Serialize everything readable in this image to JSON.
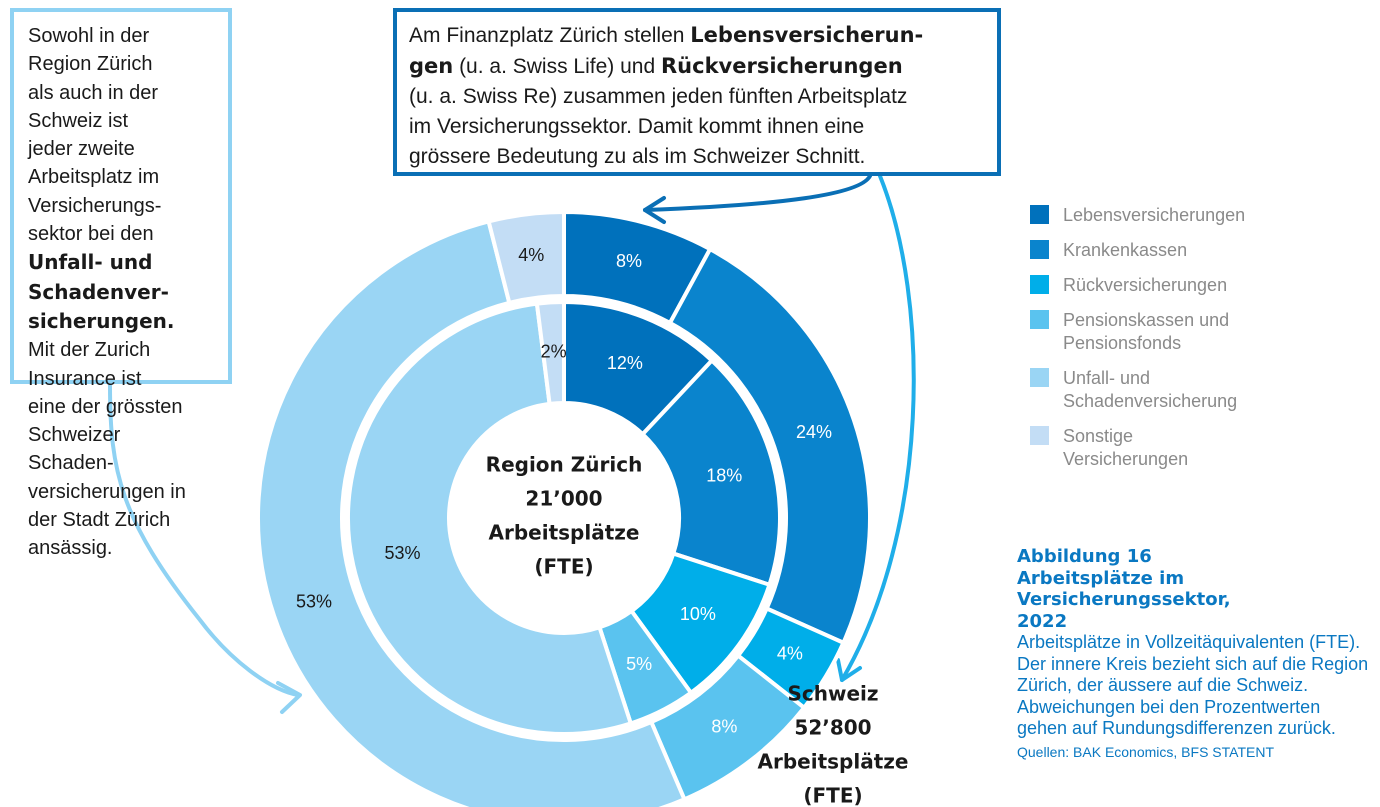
{
  "chart_data": {
    "type": "nested-donut",
    "categories": [
      "Lebensversicherungen",
      "Krankenkassen",
      "Rückversicherungen",
      "Pensionskassen und Pensionsfonds",
      "Unfall- und Schadenversicherung",
      "Sonstige Versicherungen"
    ],
    "colors": [
      "#0071bc",
      "#0a84cd",
      "#00aee9",
      "#5ac3ef",
      "#9ad5f4",
      "#c3ddf5"
    ],
    "label_colors": [
      "#ffffff",
      "#ffffff",
      "#ffffff",
      "#ffffff",
      "#1a1a1a",
      "#1a1a1a"
    ],
    "series": [
      {
        "label": [
          "Region Zürich",
          "21’000",
          "Arbeitsplätze",
          "(FTE)"
        ],
        "values": [
          12,
          18,
          10,
          5,
          53,
          2
        ],
        "value_labels": [
          "12%",
          "18%",
          "10%",
          "5%",
          "53%",
          "2%"
        ]
      },
      {
        "label": [
          "Schweiz",
          "52’800",
          "Arbeitsplätze",
          "(FTE)"
        ],
        "values": [
          8,
          24,
          4,
          8,
          53,
          4
        ],
        "value_labels": [
          "8%",
          "24%",
          "4%",
          "8%",
          "53%",
          "4%"
        ]
      }
    ],
    "figure_label": "Abbildung 16",
    "title": "Arbeitsplätze im Versicherungssektor, 2022",
    "subtitle": "Arbeitsplätze in Vollzeitäquivalenten (FTE).",
    "note": "Der innere Kreis bezieht sich auf die Region Zürich, der äussere auf die Schweiz. Abweichungen bei den Prozentwerten gehen auf Rundungs­differenzen zurück.",
    "source": "Quellen: BAK Economics, BFS STATENT",
    "annotations": [
      {
        "lines": [
          [
            "Sowohl in der"
          ],
          [
            "Region Zürich"
          ],
          [
            "als auch in der"
          ],
          [
            "Schweiz ist"
          ],
          [
            "jeder zweite"
          ],
          [
            "Arbeitsplatz im"
          ],
          [
            "Versicherungs-"
          ],
          [
            "sektor bei den"
          ],
          [
            {
              "text": "Unfall- und",
              "bold": true
            }
          ],
          [
            {
              "text": "Schadenver-",
              "bold": true
            }
          ],
          [
            {
              "text": "sicherungen.",
              "bold": true
            }
          ],
          [
            "Mit der Zurich"
          ],
          [
            "Insurance ist"
          ],
          [
            "eine der grössten"
          ],
          [
            "Schweizer"
          ],
          [
            "Schaden-"
          ],
          [
            "versicherungen in"
          ],
          [
            "der Stadt Zürich"
          ],
          [
            "ansässig."
          ]
        ]
      },
      {
        "lines": [
          [
            "Am Finanzplatz Zürich stellen ",
            {
              "text": "Lebensversicherun-",
              "bold": true
            }
          ],
          [
            {
              "text": "gen",
              "bold": true
            },
            " (u. a. Swiss Life) und ",
            {
              "text": "Rückversicherungen",
              "bold": true
            }
          ],
          [
            "(u. a. Swiss Re) zusammen jeden fünften Arbeitsplatz"
          ],
          [
            "im Versicherungssektor. Damit kommt ihnen eine"
          ],
          [
            "grössere Bedeutung zu als im Schweizer Schnitt."
          ]
        ]
      }
    ]
  }
}
